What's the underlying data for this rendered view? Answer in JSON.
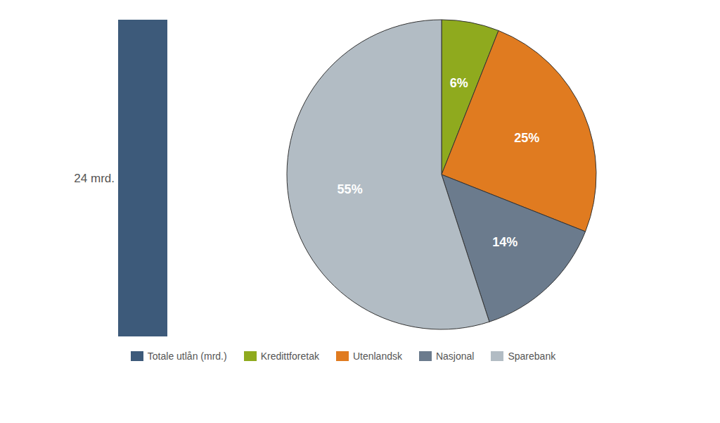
{
  "chart_data": [
    {
      "type": "bar",
      "categories": [
        null
      ],
      "series": [
        {
          "name": "Totale utlån (mrd.)",
          "color": "#3d5a7a",
          "values": [
            24
          ],
          "value_labels": [
            "24 mrd."
          ]
        }
      ],
      "ylim": [
        0,
        24
      ],
      "tick_labels": false,
      "data_labels": true
    },
    {
      "type": "pie",
      "categories": [
        "Kredittforetak",
        "Utenlandsk",
        "Nasjonal",
        "Sparebank"
      ],
      "values": [
        6,
        25,
        14,
        55
      ],
      "value_labels": [
        "6%",
        "25%",
        "14%",
        "55%"
      ],
      "colors": [
        "#8faa1e",
        "#e07b20",
        "#6b7b8d",
        "#b2bcc4"
      ],
      "data_labels": true,
      "legend": "bottom"
    }
  ]
}
